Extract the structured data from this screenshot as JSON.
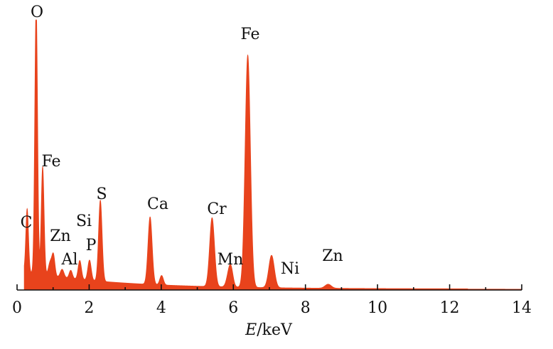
{
  "chart_data": {
    "type": "area",
    "title": "",
    "xlabel_italic": "E",
    "xlabel_rest": "/keV",
    "ylabel": "",
    "xlim": [
      0,
      14
    ],
    "x_ticks": [
      "0",
      "2",
      "4",
      "6",
      "8",
      "10",
      "12",
      "14"
    ],
    "grid": false,
    "colors": {
      "spectrum": "#e8431c",
      "axis": "#111111"
    },
    "peaks": [
      {
        "label": "C",
        "energy": 0.28,
        "intensity": 0.235
      },
      {
        "label": "O",
        "energy": 0.53,
        "intensity": 1.0
      },
      {
        "label": "Fe",
        "energy": 0.71,
        "intensity": 0.4
      },
      {
        "label": "Zn",
        "energy": 1.01,
        "intensity": 0.075
      },
      {
        "label": "Al",
        "energy": 1.49,
        "intensity": 0.03
      },
      {
        "label": "Si",
        "energy": 1.74,
        "intensity": 0.07
      },
      {
        "label": "P",
        "energy": 2.01,
        "intensity": 0.075
      },
      {
        "label": "S",
        "energy": 2.31,
        "intensity": 0.3
      },
      {
        "label": "Ca",
        "energy": 3.69,
        "intensity": 0.25
      },
      {
        "label": "Cr",
        "energy": 5.41,
        "intensity": 0.255
      },
      {
        "label": "Mn",
        "energy": 5.9,
        "intensity": 0.07
      },
      {
        "label": "Fe",
        "energy": 6.4,
        "intensity": 0.86
      },
      {
        "label": "Ni",
        "energy": 7.06,
        "intensity": 0.12
      },
      {
        "label": "Zn",
        "energy": 8.63,
        "intensity": 0.015
      }
    ]
  }
}
